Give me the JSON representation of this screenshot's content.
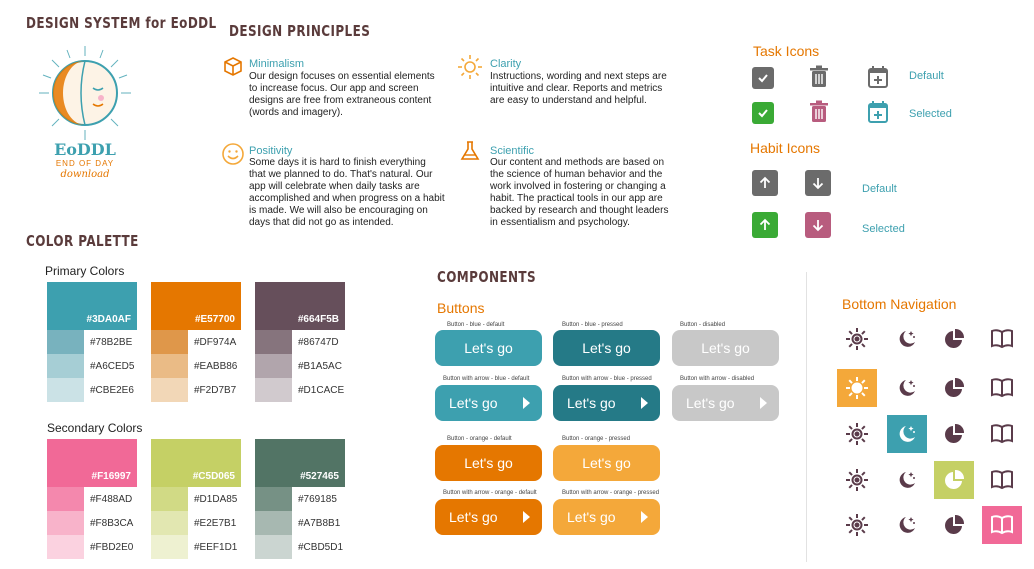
{
  "title": "DESIGN SYSTEM for EoDDL",
  "logo": {
    "wordmark": "EoDDL",
    "line1": "END OF DAY",
    "line2": "download"
  },
  "principles": {
    "heading": "DESIGN PRINCIPLES",
    "items": [
      {
        "title": "Minimalism",
        "text": "Our design focuses on essential elements to increase focus. Our app and screen designs are free from extraneous content (words and imagery)."
      },
      {
        "title": "Clarity",
        "text": "Instructions, wording and next steps are intuitive and clear. Reports and metrics are easy to understand and helpful."
      },
      {
        "title": "Positivity",
        "text": "Some days it is hard to finish everything that we planned to do. That's natural. Our app will celebrate when daily tasks are accomplished and when progress on a habit is made. We will also be encouraging on days that did not go as intended."
      },
      {
        "title": "Scientific",
        "text": "Our content and methods are based on the science of human behavior and the work involved in fostering or changing a habit. The practical tools in our app are backed by research and thought leaders in essentialism and psychology."
      }
    ]
  },
  "task_icons": {
    "heading": "Task Icons",
    "default_label": "Default",
    "selected_label": "Selected"
  },
  "habit_icons": {
    "heading": "Habit Icons",
    "default_label": "Default",
    "selected_label": "Selected"
  },
  "palette": {
    "heading": "COLOR PALETTE",
    "primary_label": "Primary Colors",
    "secondary_label": "Secondary Colors",
    "primary": [
      {
        "main": "#3DA0AF",
        "tints": [
          "#78B2BE",
          "#A6CED5",
          "#CBE2E6"
        ]
      },
      {
        "main": "#E57700",
        "tints": [
          "#DF974A",
          "#EABB86",
          "#F2D7B7"
        ]
      },
      {
        "main": "#664F5B",
        "tints": [
          "#86747D",
          "#B1A5AC",
          "#D1CACE"
        ]
      }
    ],
    "secondary": [
      {
        "main": "#F16997",
        "tints": [
          "#F488AD",
          "#F8B3CA",
          "#FBD2E0"
        ]
      },
      {
        "main": "#C5D065",
        "tints": [
          "#D1DA85",
          "#E2E7B1",
          "#EEF1D1"
        ]
      },
      {
        "main": "#527465",
        "tints": [
          "#769185",
          "#A7B8B1",
          "#CBD5D1"
        ]
      }
    ]
  },
  "components": {
    "heading": "COMPONENTS",
    "buttons_heading": "Buttons",
    "button_label": "Let's go",
    "captions": {
      "blue_default": "Button - blue - default",
      "blue_pressed": "Button - blue - pressed",
      "disabled": "Button - disabled",
      "arrow_blue_default": "Button with arrow - blue - default",
      "arrow_blue_pressed": "Button with arrow - blue - pressed",
      "arrow_disabled": "Button with arrow - disabled",
      "orange_default": "Button - orange - default",
      "orange_pressed": "Button - orange - pressed",
      "arrow_orange_default": "Button with arrow - orange - default",
      "arrow_orange_pressed": "Button with arrow - orange - pressed"
    },
    "colors": {
      "blue": "#3DA0AF",
      "blue_pressed": "#257A87",
      "disabled": "#C8C8C8",
      "orange": "#E57700",
      "orange_pressed": "#F4A83A"
    }
  },
  "bottom_nav": {
    "heading": "Bottom Navigation",
    "icons": [
      "sun-icon",
      "moon-stars-icon",
      "pie-chart-icon",
      "book-icon"
    ],
    "selected_colors": [
      "#F4A83A",
      "#3DA0AF",
      "#C5D065",
      "#F16997"
    ]
  }
}
